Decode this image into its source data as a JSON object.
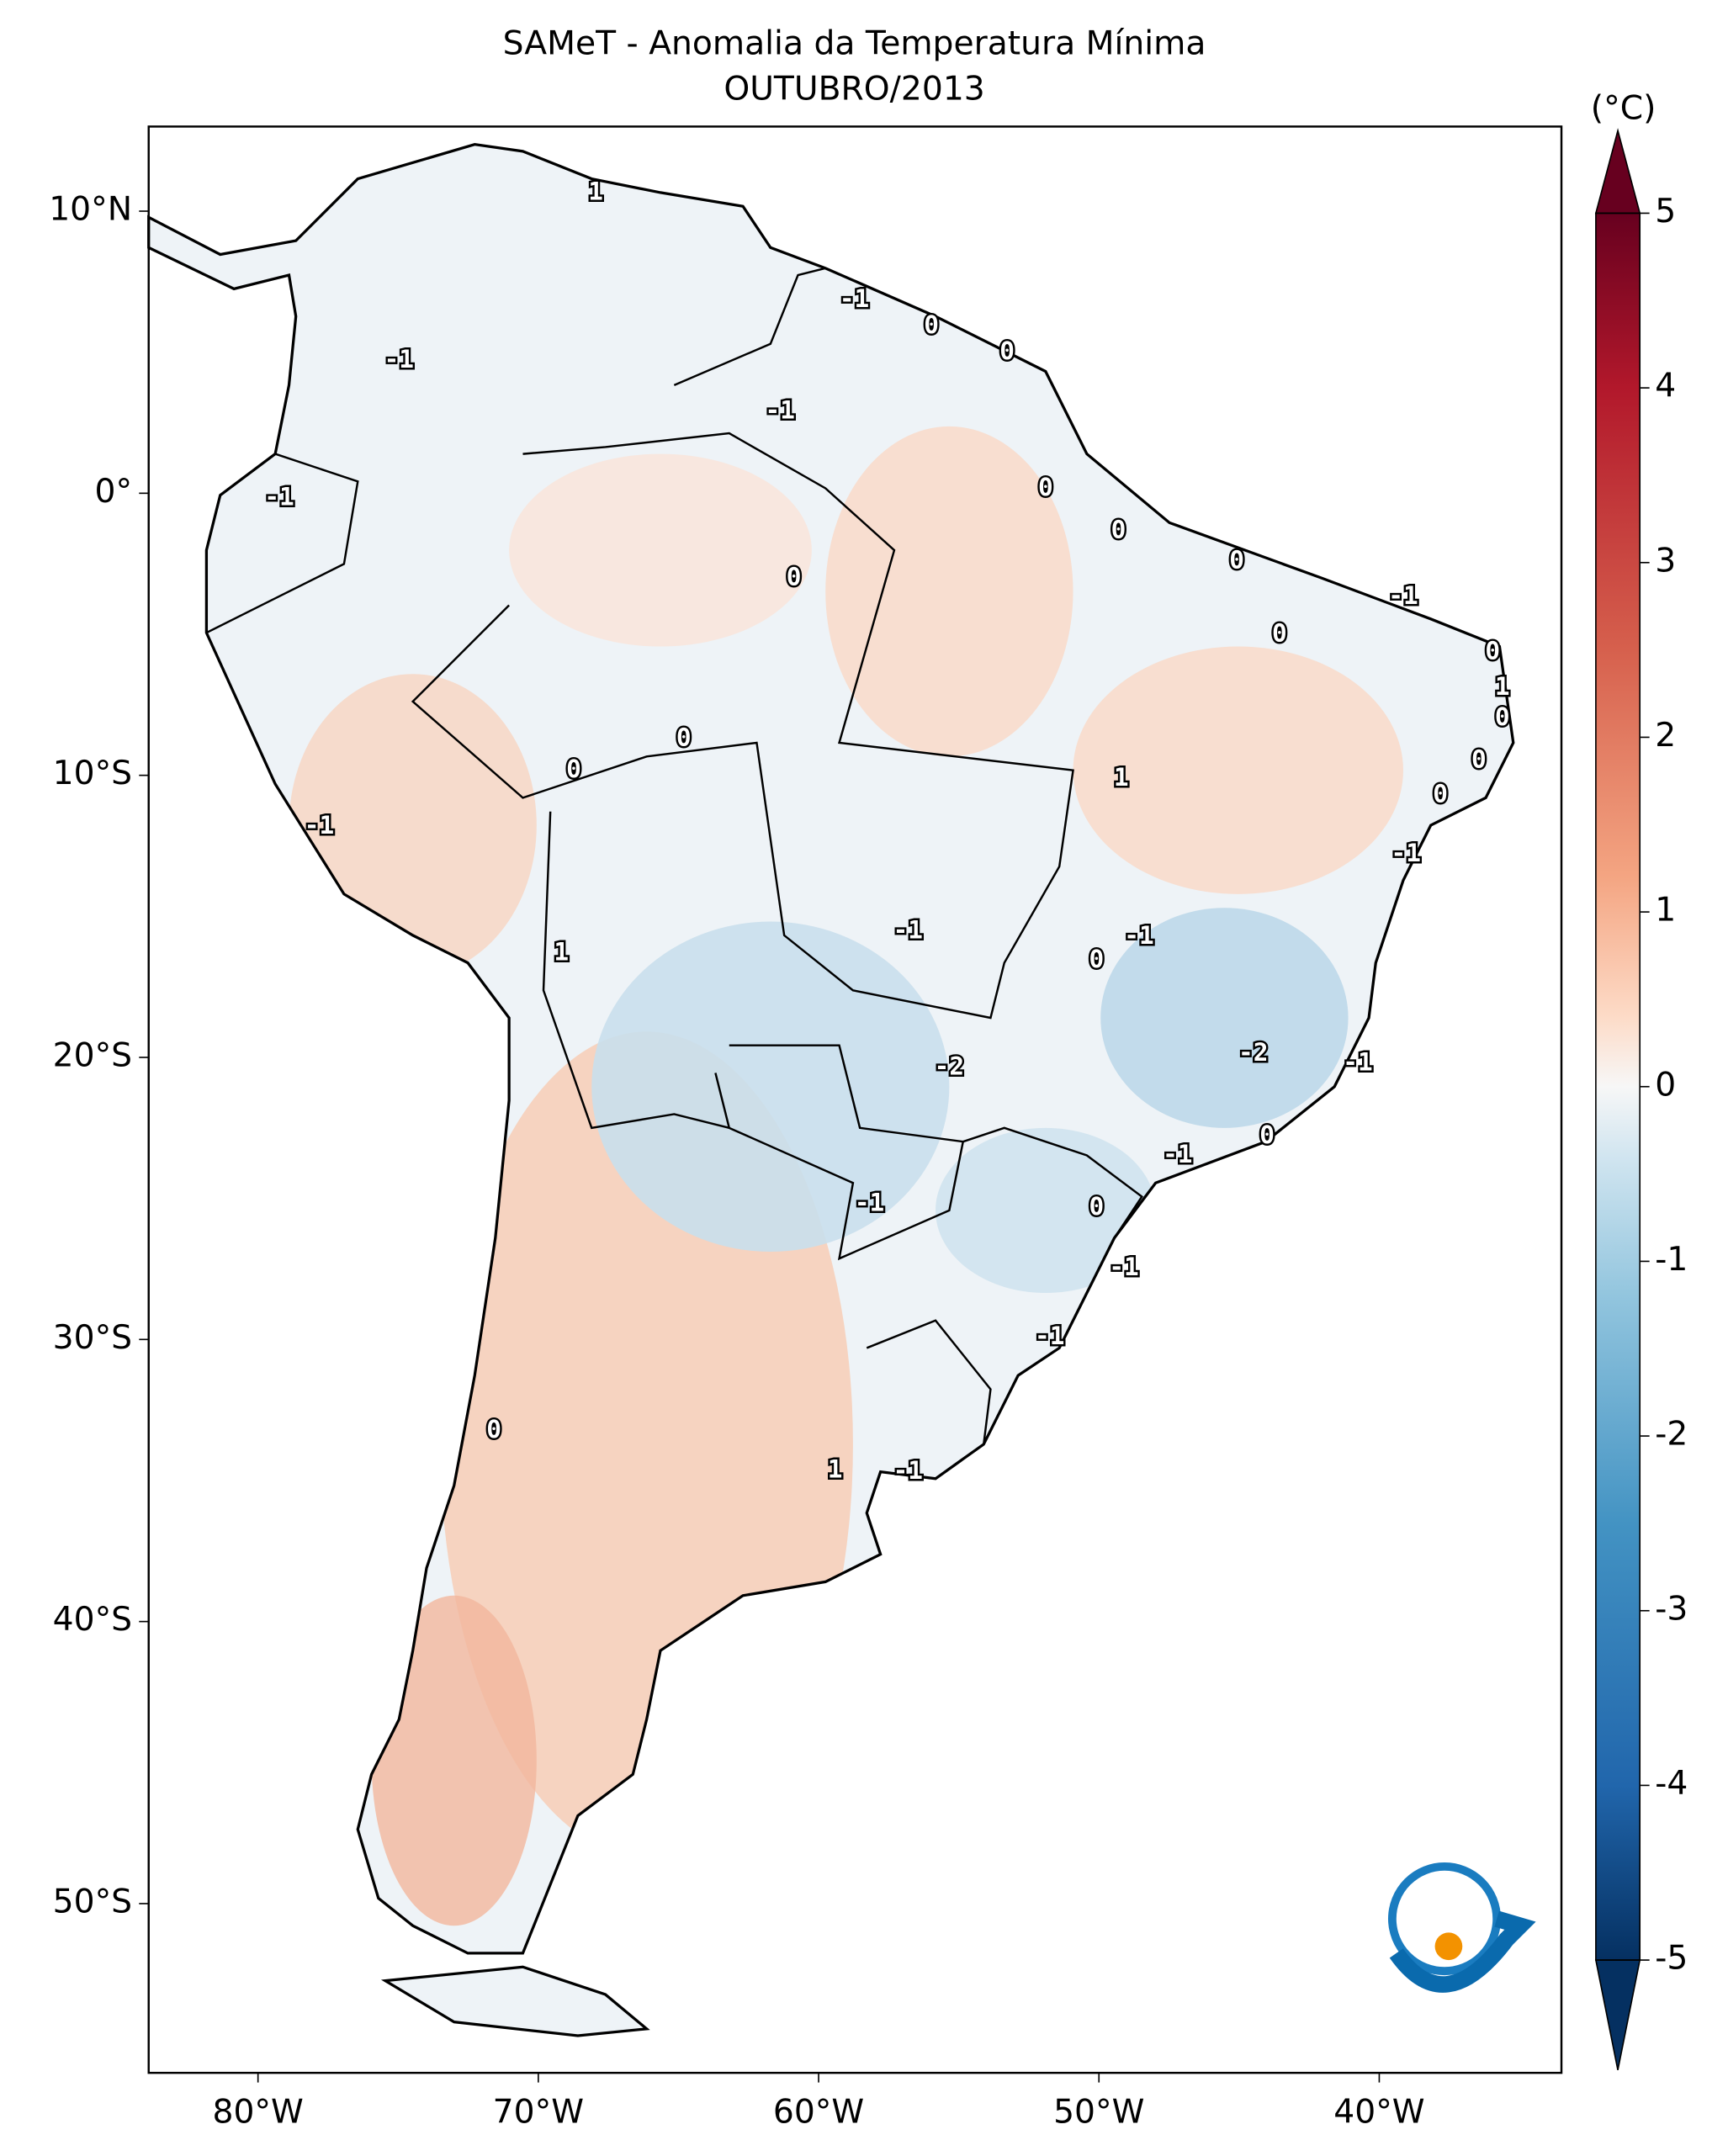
{
  "chart_data": {
    "type": "map",
    "title": "SAMeT - Anomalia da Temperatura Mínima",
    "subtitle": "OUTUBRO/2013",
    "xlim": [
      -83.9,
      -33.5
    ],
    "ylim": [
      -56,
      13
    ],
    "xticks": [
      {
        "value": -80,
        "label": "80°W"
      },
      {
        "value": -70,
        "label": "70°W"
      },
      {
        "value": -60,
        "label": "60°W"
      },
      {
        "value": -50,
        "label": "50°W"
      },
      {
        "value": -40,
        "label": "40°W"
      }
    ],
    "yticks": [
      {
        "value": 10,
        "label": "10°N"
      },
      {
        "value": 0,
        "label": "0°"
      },
      {
        "value": -10,
        "label": "10°S"
      },
      {
        "value": -20,
        "label": "20°S"
      },
      {
        "value": -30,
        "label": "30°S"
      },
      {
        "value": -40,
        "label": "40°S"
      },
      {
        "value": -50,
        "label": "50°S"
      }
    ],
    "colorbar": {
      "label": "(°C)",
      "lim": [
        -5,
        5
      ],
      "ticks": [
        -5,
        -4,
        -3,
        -2,
        -1,
        0,
        1,
        2,
        3,
        4,
        5
      ]
    },
    "contour_labels": [
      1,
      -1,
      0,
      0,
      -1,
      -1,
      0,
      -1,
      0,
      0,
      0,
      -1,
      0,
      0,
      1,
      0,
      0,
      0,
      0,
      1,
      0,
      -1,
      -1,
      -1,
      -1,
      0,
      1,
      -2,
      -2,
      -1,
      0,
      -1,
      -1,
      0,
      -1,
      -1,
      0,
      1,
      -1
    ]
  }
}
